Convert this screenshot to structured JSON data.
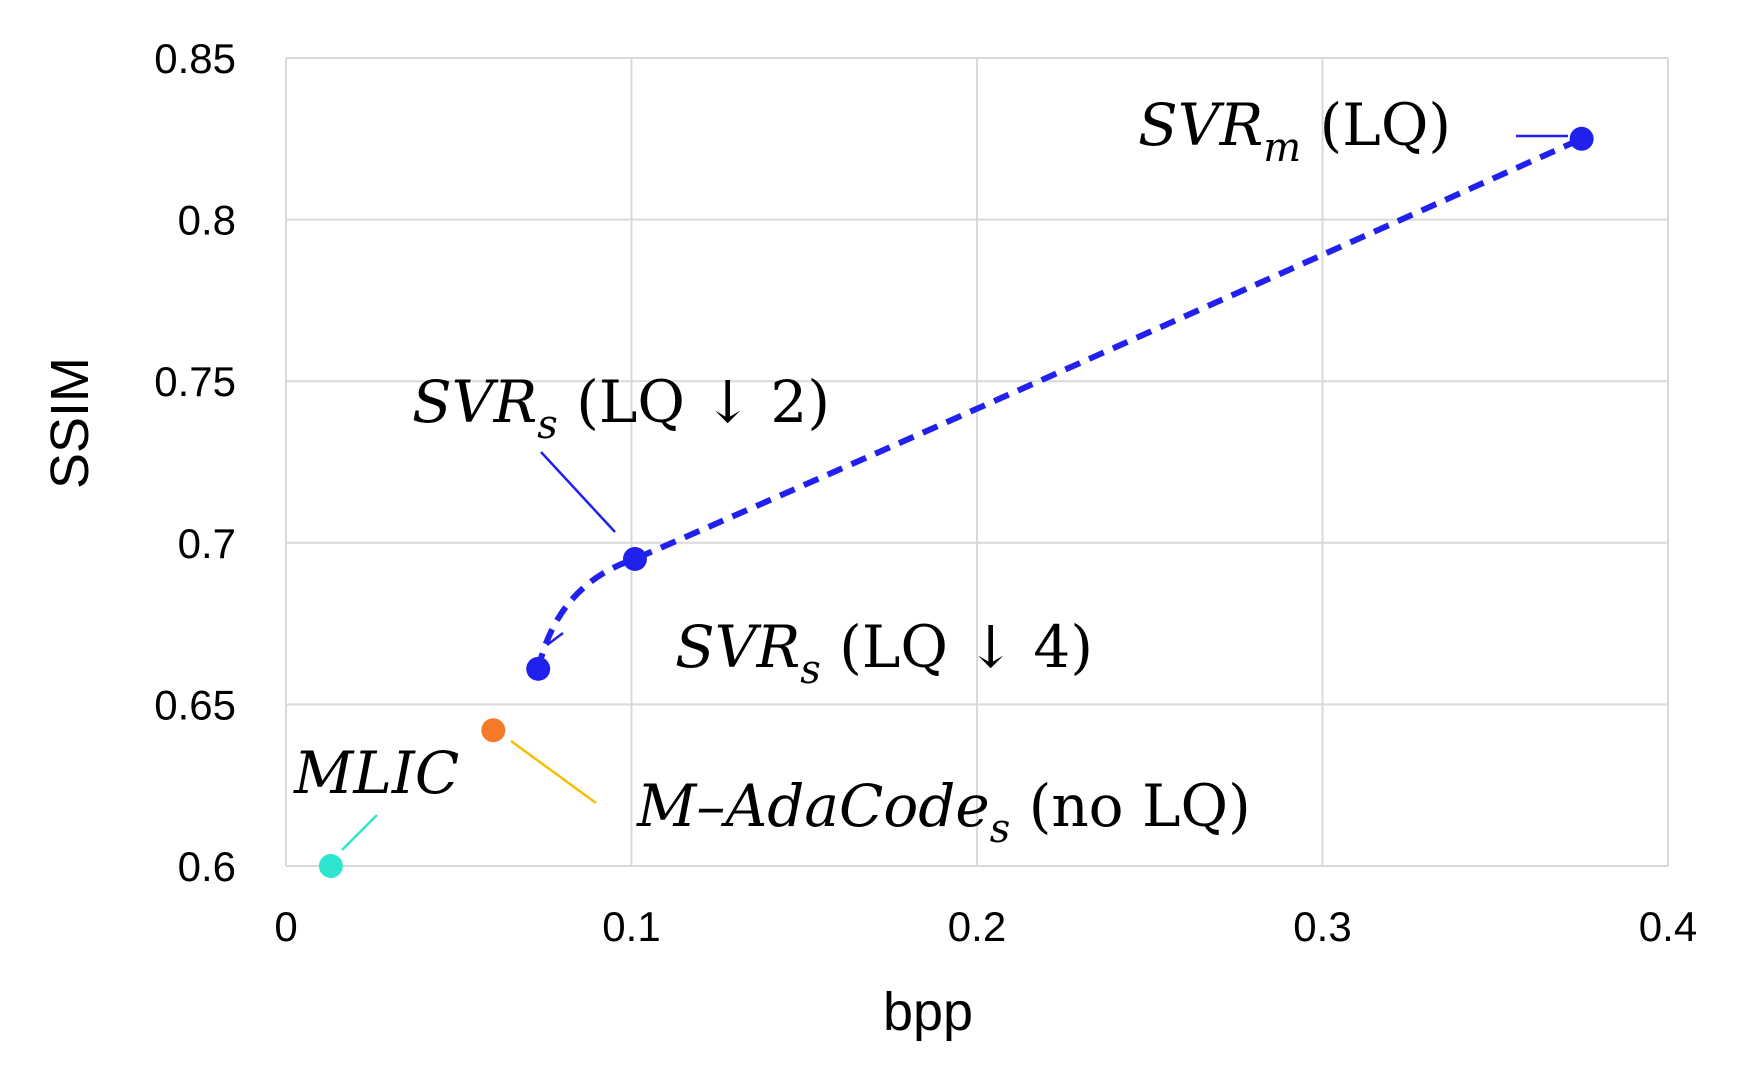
{
  "chart_data": {
    "type": "scatter",
    "xlabel": "bpp",
    "ylabel": "SSIM",
    "xlim": [
      0,
      0.4
    ],
    "ylim": [
      0.6,
      0.85
    ],
    "x_ticks": [
      "0",
      "0.1",
      "0.2",
      "0.3",
      "0.4"
    ],
    "y_ticks": [
      "0.6",
      "0.65",
      "0.7",
      "0.75",
      "0.8",
      "0.85"
    ],
    "grid": true,
    "legend": "none",
    "series": [
      {
        "style": "dashed-line-with-markers",
        "color": "#2121ee",
        "points": [
          {
            "x": 0.073,
            "y": 0.661,
            "label_main": "SVR",
            "label_sub": "s",
            "label_rest": " (LQ ↓ 4)"
          },
          {
            "x": 0.101,
            "y": 0.695,
            "label_main": "SVR",
            "label_sub": "s",
            "label_rest": " (LQ ↓ 2)"
          },
          {
            "x": 0.375,
            "y": 0.825,
            "label_main": "SVR",
            "label_sub": "m",
            "label_rest": " (LQ)"
          }
        ]
      },
      {
        "style": "marker",
        "color": "#f47a2a",
        "leader_color": "#f5c000",
        "points": [
          {
            "x": 0.06,
            "y": 0.642,
            "label_main": "M–AdaCode",
            "label_sub": "s",
            "label_rest": " (no LQ)"
          }
        ]
      },
      {
        "style": "marker",
        "color": "#2ee6cf",
        "leader_color": "#2ee6cf",
        "points": [
          {
            "x": 0.013,
            "y": 0.6,
            "label_main": "MLIC",
            "label_sub": "",
            "label_rest": ""
          }
        ]
      }
    ]
  }
}
